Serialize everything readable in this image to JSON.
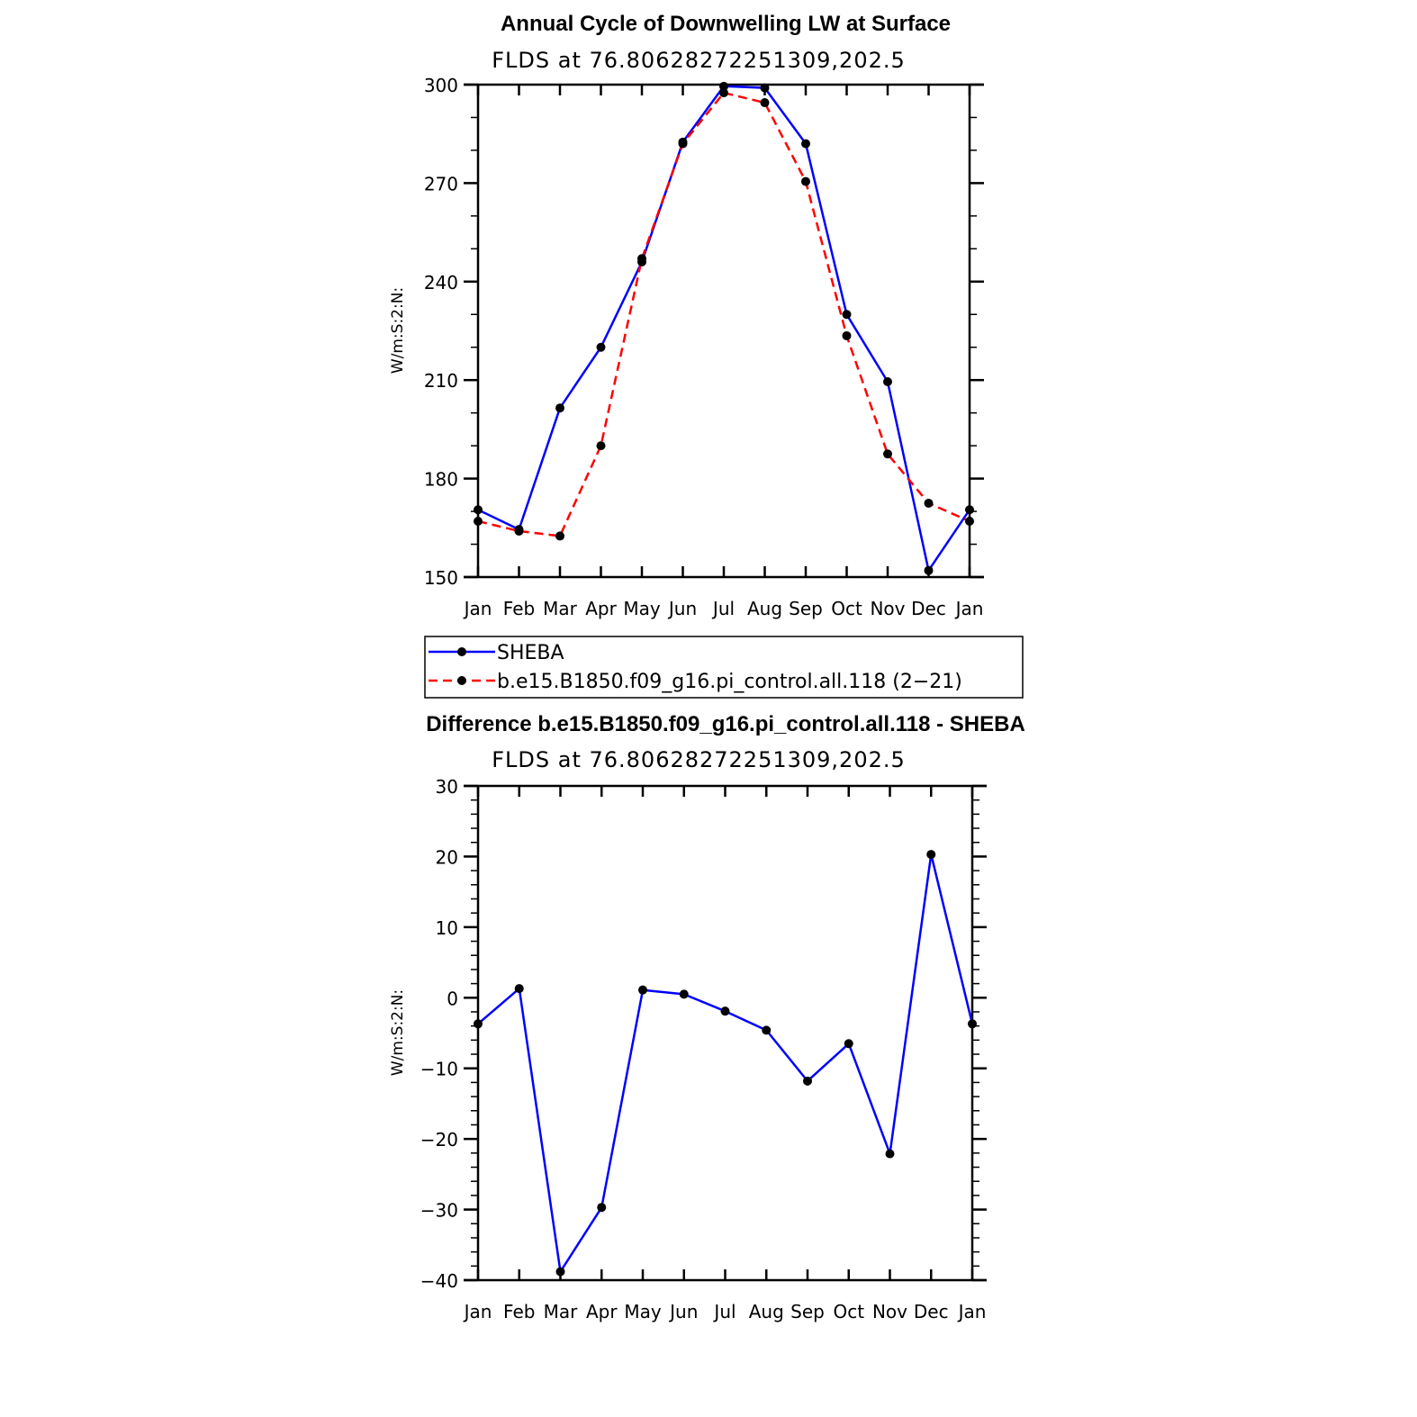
{
  "chart_data": [
    {
      "type": "line",
      "title": "Annual Cycle of Downwelling LW at Surface",
      "subtitle": "FLDS at 76.80628272251309,202.5",
      "ylabel": "W/m:S:2:N:",
      "categories": [
        "Jan",
        "Feb",
        "Mar",
        "Apr",
        "May",
        "Jun",
        "Jul",
        "Aug",
        "Sep",
        "Oct",
        "Nov",
        "Dec",
        "Jan"
      ],
      "ylim": [
        150,
        300
      ],
      "yticks": [
        "150",
        "180",
        "210",
        "240",
        "270",
        "300"
      ],
      "series": [
        {
          "name": "SHEBA",
          "color": "#0000ff",
          "dash": "solid",
          "values": [
            170.5,
            164.5,
            201.5,
            220,
            246,
            282.5,
            299.5,
            299,
            282,
            230,
            209.5,
            152,
            170.5
          ]
        },
        {
          "name": "b.e15.B1850.f09_g16.pi_control.all.118 (2−21)",
          "color": "#ff0000",
          "dash": "dashed",
          "values": [
            167,
            164,
            162.5,
            190,
            247,
            282,
            297.5,
            294.5,
            270.5,
            223.5,
            187.5,
            172.5,
            167
          ]
        }
      ]
    },
    {
      "type": "line",
      "title": "Difference b.e15.B1850.f09_g16.pi_control.all.118 - SHEBA",
      "subtitle": "FLDS at 76.80628272251309,202.5",
      "ylabel": "W/m:S:2:N:",
      "categories": [
        "Jan",
        "Feb",
        "Mar",
        "Apr",
        "May",
        "Jun",
        "Jul",
        "Aug",
        "Sep",
        "Oct",
        "Nov",
        "Dec",
        "Jan"
      ],
      "ylim": [
        -40,
        30
      ],
      "yticks": [
        "−40",
        "−30",
        "−20",
        "−10",
        "0",
        "10",
        "20",
        "30"
      ],
      "series": [
        {
          "color": "#0000ff",
          "dash": "solid",
          "values": [
            -3.7,
            1.3,
            -38.8,
            -29.7,
            1.1,
            0.5,
            -1.9,
            -4.6,
            -11.8,
            -6.5,
            -22.1,
            20.3,
            -3.7
          ]
        }
      ]
    }
  ]
}
